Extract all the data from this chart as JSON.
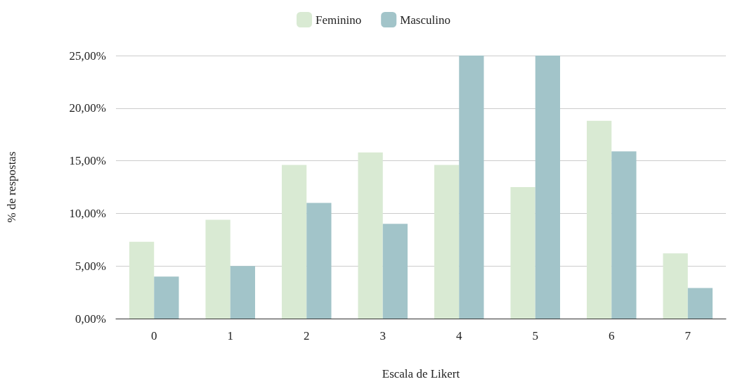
{
  "chart_data": {
    "type": "bar",
    "xlabel": "Escala de Likert",
    "ylabel": "% de respostas",
    "categories": [
      "0",
      "1",
      "2",
      "3",
      "4",
      "5",
      "6",
      "7"
    ],
    "series": [
      {
        "name": "Feminino",
        "color": "#d9ead3",
        "values": [
          7.3,
          9.4,
          14.6,
          15.8,
          14.6,
          12.5,
          18.8,
          6.2
        ]
      },
      {
        "name": "Masculino",
        "color": "#a2c4c9",
        "values": [
          4.0,
          5.0,
          11.0,
          9.0,
          25.0,
          25.0,
          15.9,
          2.9
        ]
      }
    ],
    "ylim": [
      0,
      25
    ],
    "yticks": [
      {
        "value": 0,
        "label": "0,00%"
      },
      {
        "value": 5,
        "label": "5,00%"
      },
      {
        "value": 10,
        "label": "10,00%"
      },
      {
        "value": 15,
        "label": "15,00%"
      },
      {
        "value": 20,
        "label": "20,00%"
      },
      {
        "value": 25,
        "label": "25,00%"
      }
    ],
    "grid": "y",
    "legend": "top"
  }
}
